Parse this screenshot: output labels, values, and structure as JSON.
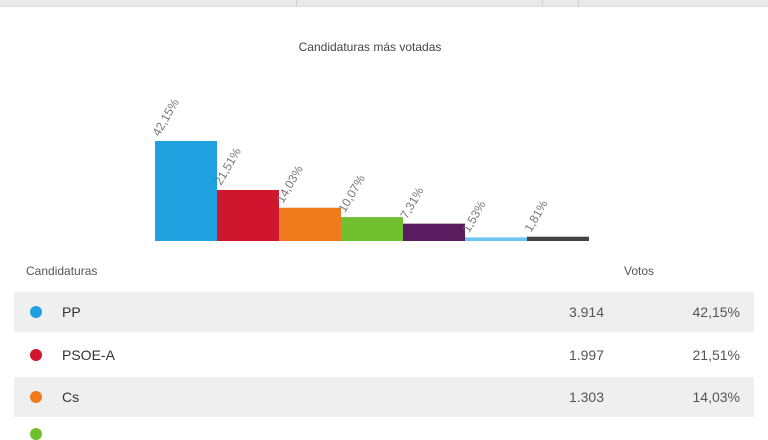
{
  "chart_data": {
    "type": "bar",
    "title": "Candidaturas más votadas",
    "categories": [
      "PP",
      "PSOE-A",
      "Cs",
      "",
      "",
      "",
      ""
    ],
    "values": [
      42.15,
      21.51,
      14.03,
      10.07,
      7.31,
      1.53,
      1.81
    ],
    "data_labels": [
      "42,15%",
      "21,51%",
      "14,03%",
      "10,07%",
      "7,31%",
      "1,53%",
      "1,81%"
    ],
    "colors": [
      "#1fa1e0",
      "#d0162f",
      "#f07b1d",
      "#6fbf2f",
      "#5a1c5e",
      "#6ec6f0",
      "#444444"
    ],
    "ylim": [
      0,
      42.15
    ],
    "grid": false,
    "legend": "none"
  },
  "table": {
    "header_candidaturas": "Candidaturas",
    "header_votos": "Votos",
    "rows": [
      {
        "party": "PP",
        "votes": "3.914",
        "pct": "42,15%",
        "color": "#1fa1e0"
      },
      {
        "party": "PSOE-A",
        "votes": "1.997",
        "pct": "21,51%",
        "color": "#d0162f"
      },
      {
        "party": "Cs",
        "votes": "1.303",
        "pct": "14,03%",
        "color": "#f07b1d"
      }
    ],
    "partial_row_color": "#6fbf2f"
  }
}
